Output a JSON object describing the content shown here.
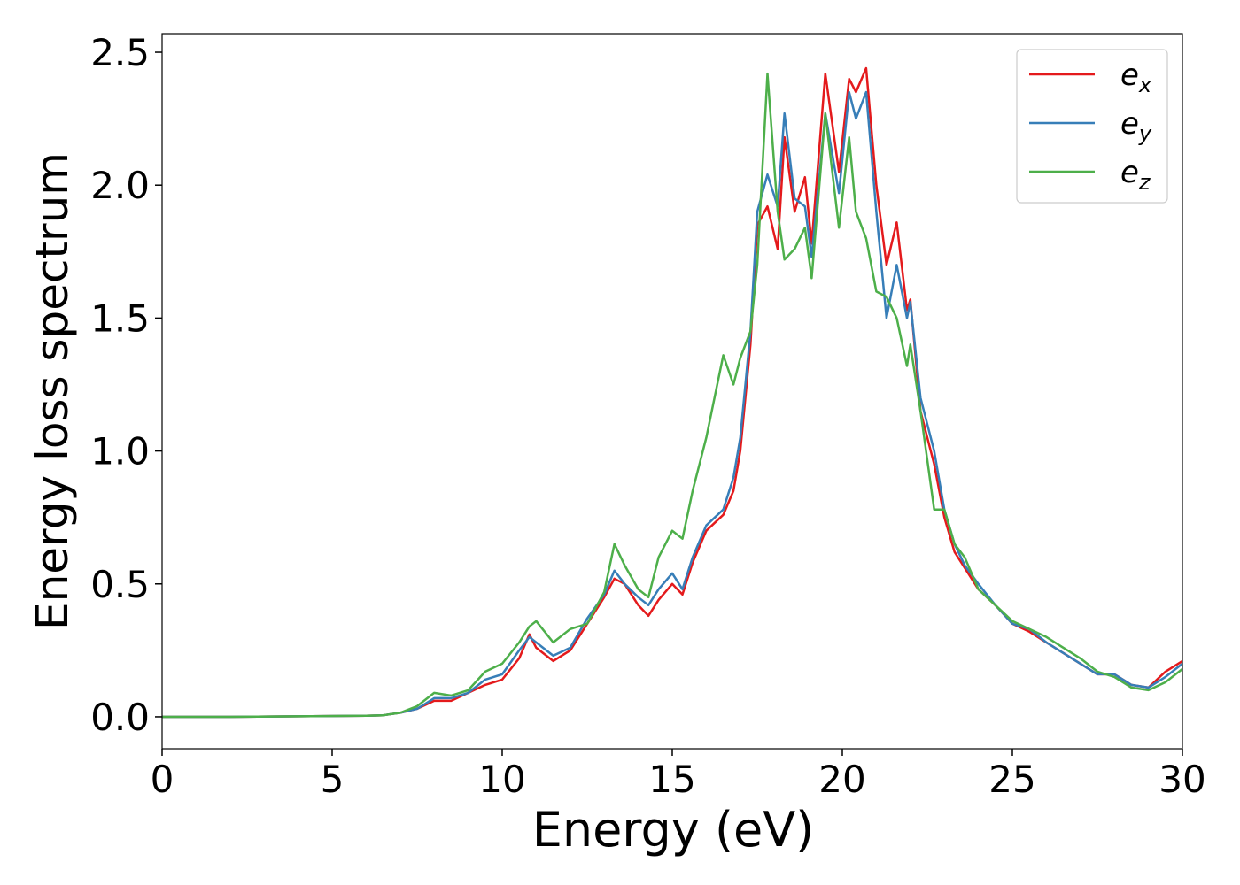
{
  "chart_data": {
    "type": "line",
    "xlabel": "Energy (eV)",
    "ylabel": "Energy loss spectrum",
    "xlim": [
      0,
      30
    ],
    "ylim": [
      -0.12,
      2.57
    ],
    "xticks": [
      0,
      5,
      10,
      15,
      20,
      25,
      30
    ],
    "yticks": [
      {
        "value": 0,
        "label": "0.0"
      },
      0.5,
      {
        "value": 1,
        "label": "1.0"
      },
      1.5,
      {
        "value": 2,
        "label": "2.0"
      },
      2.5
    ],
    "legend": "upper right",
    "x": [
      0,
      2,
      4,
      6,
      6.5,
      7,
      7.5,
      8,
      8.5,
      9,
      9.5,
      10,
      10.5,
      10.8,
      11,
      11.5,
      12,
      12.5,
      13,
      13.3,
      13.6,
      14,
      14.3,
      14.6,
      15,
      15.3,
      15.6,
      16,
      16.5,
      16.8,
      17,
      17.3,
      17.5,
      17.8,
      18.1,
      18.3,
      18.6,
      18.9,
      19.1,
      19.5,
      19.9,
      20.2,
      20.4,
      20.7,
      21,
      21.3,
      21.6,
      21.9,
      22,
      22.3,
      22.7,
      23,
      23.3,
      23.6,
      24,
      24.5,
      25,
      25.5,
      26,
      26.5,
      27,
      27.5,
      28,
      28.5,
      29,
      29.5,
      30
    ],
    "series": [
      {
        "name": "ex",
        "color": "#e41a1c",
        "values": [
          0,
          0,
          0.002,
          0.004,
          0.006,
          0.015,
          0.03,
          0.06,
          0.06,
          0.09,
          0.12,
          0.14,
          0.22,
          0.31,
          0.26,
          0.21,
          0.25,
          0.35,
          0.45,
          0.52,
          0.5,
          0.42,
          0.38,
          0.44,
          0.5,
          0.46,
          0.58,
          0.7,
          0.76,
          0.85,
          1.0,
          1.4,
          1.85,
          1.92,
          1.76,
          2.18,
          1.9,
          2.03,
          1.78,
          2.42,
          2.05,
          2.4,
          2.35,
          2.44,
          2.0,
          1.7,
          1.86,
          1.53,
          1.57,
          1.15,
          0.95,
          0.75,
          0.62,
          0.56,
          0.48,
          0.42,
          0.35,
          0.32,
          0.28,
          0.24,
          0.2,
          0.16,
          0.16,
          0.12,
          0.11,
          0.17,
          0.21
        ]
      },
      {
        "name": "ey",
        "color": "#377eb8",
        "values": [
          0,
          0,
          0.002,
          0.004,
          0.006,
          0.015,
          0.03,
          0.07,
          0.07,
          0.09,
          0.14,
          0.16,
          0.25,
          0.3,
          0.28,
          0.23,
          0.26,
          0.37,
          0.46,
          0.55,
          0.5,
          0.45,
          0.42,
          0.48,
          0.54,
          0.48,
          0.6,
          0.72,
          0.78,
          0.9,
          1.05,
          1.45,
          1.9,
          2.04,
          1.92,
          2.27,
          1.95,
          1.92,
          1.73,
          2.27,
          1.97,
          2.35,
          2.25,
          2.35,
          1.9,
          1.5,
          1.7,
          1.5,
          1.56,
          1.2,
          1.0,
          0.78,
          0.65,
          0.57,
          0.5,
          0.42,
          0.35,
          0.33,
          0.28,
          0.24,
          0.2,
          0.16,
          0.16,
          0.12,
          0.11,
          0.15,
          0.2
        ]
      },
      {
        "name": "ez",
        "color": "#4daf4a",
        "values": [
          0,
          0,
          0.002,
          0.004,
          0.006,
          0.015,
          0.04,
          0.09,
          0.08,
          0.1,
          0.17,
          0.2,
          0.28,
          0.34,
          0.36,
          0.28,
          0.33,
          0.35,
          0.47,
          0.65,
          0.57,
          0.48,
          0.45,
          0.6,
          0.7,
          0.67,
          0.85,
          1.05,
          1.36,
          1.25,
          1.35,
          1.45,
          1.7,
          2.42,
          1.9,
          1.72,
          1.76,
          1.84,
          1.65,
          2.27,
          1.84,
          2.18,
          1.9,
          1.8,
          1.6,
          1.58,
          1.5,
          1.32,
          1.4,
          1.15,
          0.78,
          0.78,
          0.65,
          0.6,
          0.48,
          0.42,
          0.36,
          0.33,
          0.3,
          0.26,
          0.22,
          0.17,
          0.15,
          0.11,
          0.1,
          0.13,
          0.18
        ]
      }
    ]
  }
}
